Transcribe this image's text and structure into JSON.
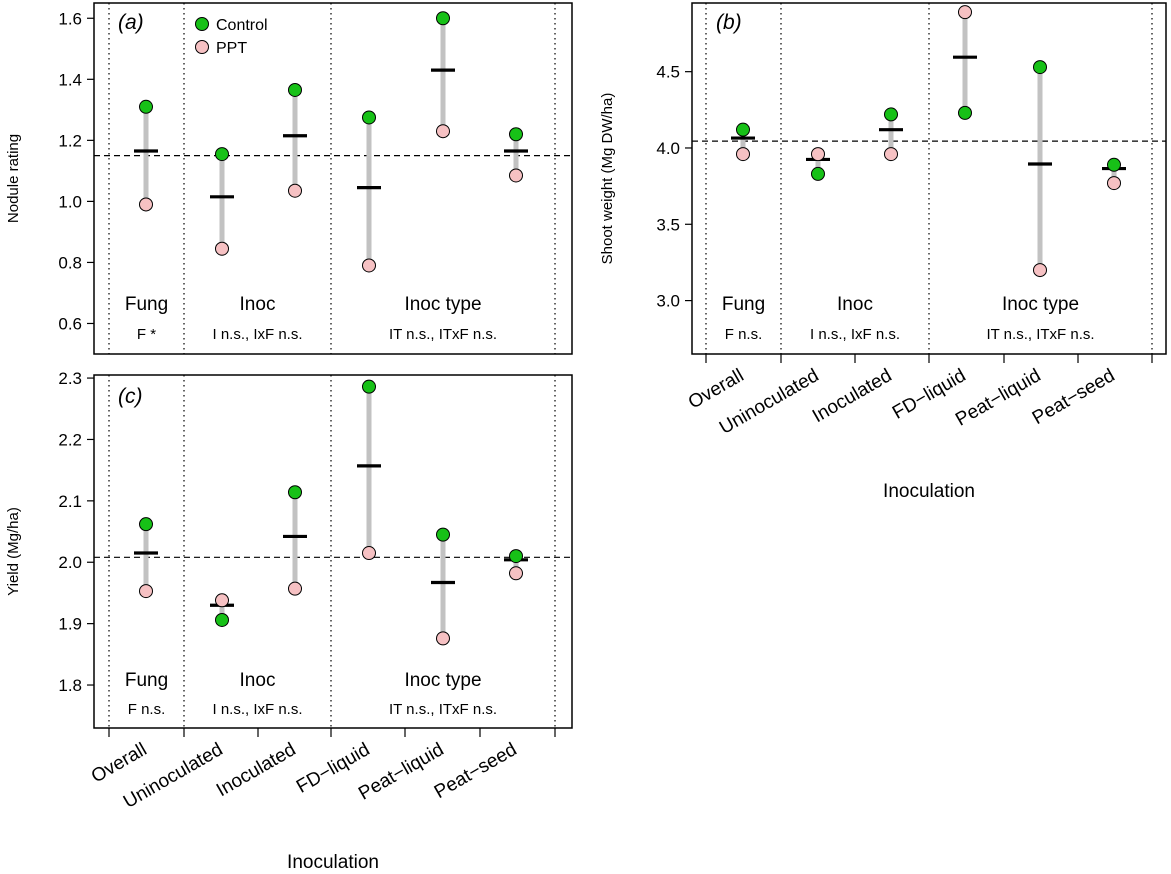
{
  "figure": {
    "legend": [
      "Control",
      "PPT"
    ],
    "colors": {
      "control": "#17c117",
      "ppt": "#f6c1c3",
      "range_line": "#c2c2c2",
      "mean_bar": "#000000",
      "axis": "#000000"
    },
    "x_categories": [
      "Overall",
      "Uninoculated",
      "Inoculated",
      "FD−liquid",
      "Peat−liquid",
      "Peat−seed"
    ],
    "x_label": "Inoculation",
    "group_labels": [
      "Fung",
      "Inoc",
      "Inoc type"
    ]
  },
  "chart_data": [
    {
      "id": "a",
      "panel_label": "(a)",
      "type": "scatter",
      "ylabel": "Nodule rating",
      "ylim": [
        0.5,
        1.65
      ],
      "yticks": [
        0.6,
        0.8,
        1.0,
        1.2,
        1.4,
        1.6
      ],
      "ytick_labels": [
        "0.6",
        "0.8",
        "1.0",
        "1.2",
        "1.4",
        "1.6"
      ],
      "reference_line": 1.15,
      "categories": [
        "Overall",
        "Uninoculated",
        "Inoculated",
        "FD−liquid",
        "Peat−liquid",
        "Peat−seed"
      ],
      "series": [
        {
          "name": "Control",
          "values": [
            1.31,
            1.155,
            1.365,
            1.275,
            1.6,
            1.22
          ]
        },
        {
          "name": "PPT",
          "values": [
            0.99,
            0.845,
            1.035,
            0.79,
            1.23,
            1.085
          ]
        }
      ],
      "means": [
        1.165,
        1.015,
        1.215,
        1.045,
        1.43,
        1.165
      ],
      "group_stats": [
        "F *",
        "I n.s., IxF n.s.",
        "IT n.s., ITxF n.s."
      ],
      "show_legend": true,
      "show_x_labels": false
    },
    {
      "id": "b",
      "panel_label": "(b)",
      "type": "scatter",
      "ylabel": "Shoot weight (Mg DW/ha)",
      "ylim": [
        2.65,
        4.95
      ],
      "yticks": [
        3.0,
        3.5,
        4.0,
        4.5
      ],
      "ytick_labels": [
        "3.0",
        "3.5",
        "4.0",
        "4.5"
      ],
      "reference_line": 4.045,
      "categories": [
        "Overall",
        "Uninoculated",
        "Inoculated",
        "FD−liquid",
        "Peat−liquid",
        "Peat−seed"
      ],
      "series": [
        {
          "name": "Control",
          "values": [
            4.12,
            3.83,
            4.22,
            4.23,
            4.53,
            3.89
          ]
        },
        {
          "name": "PPT",
          "values": [
            3.96,
            3.96,
            3.96,
            4.89,
            3.2,
            3.77
          ]
        }
      ],
      "means": [
        4.065,
        3.925,
        4.12,
        4.595,
        3.895,
        3.865
      ],
      "group_stats": [
        "F n.s.",
        "I n.s., IxF n.s.",
        "IT n.s., ITxF n.s."
      ],
      "show_legend": false,
      "show_x_labels": true
    },
    {
      "id": "c",
      "panel_label": "(c)",
      "type": "scatter",
      "ylabel": "Yield (Mg/ha)",
      "ylim": [
        1.73,
        2.305
      ],
      "yticks": [
        1.8,
        1.9,
        2.0,
        2.1,
        2.2,
        2.3
      ],
      "ytick_labels": [
        "1.8",
        "1.9",
        "2.0",
        "2.1",
        "2.2",
        "2.3"
      ],
      "reference_line": 2.008,
      "categories": [
        "Overall",
        "Uninoculated",
        "Inoculated",
        "FD−liquid",
        "Peat−liquid",
        "Peat−seed"
      ],
      "series": [
        {
          "name": "Control",
          "values": [
            2.062,
            1.906,
            2.114,
            2.286,
            2.045,
            2.01
          ]
        },
        {
          "name": "PPT",
          "values": [
            1.953,
            1.938,
            1.957,
            2.015,
            1.876,
            1.982
          ]
        }
      ],
      "means": [
        2.015,
        1.93,
        2.042,
        2.157,
        1.967,
        2.004
      ],
      "group_stats": [
        "F n.s.",
        "I n.s., IxF n.s.",
        "IT n.s., ITxF n.s."
      ],
      "show_legend": false,
      "show_x_labels": true
    }
  ]
}
